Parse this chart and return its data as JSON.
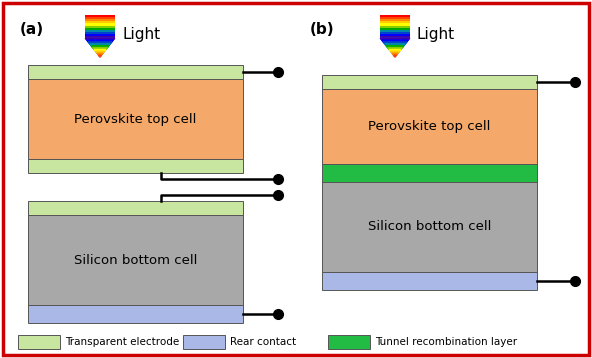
{
  "bg_color": "#ffffff",
  "border_color": "#cc0000",
  "colors": {
    "transparent_electrode": "#c8e6a0",
    "perovskite": "#f4a96a",
    "silicon": "#a8a8a8",
    "rear_contact": "#aab8e8",
    "tunnel": "#22bb44"
  },
  "legend": [
    {
      "color": "#c8e6a0",
      "label": "Transparent electrode"
    },
    {
      "color": "#aab8e8",
      "label": "Rear contact"
    },
    {
      "color": "#22bb44",
      "label": "Tunnel recombination layer"
    }
  ]
}
